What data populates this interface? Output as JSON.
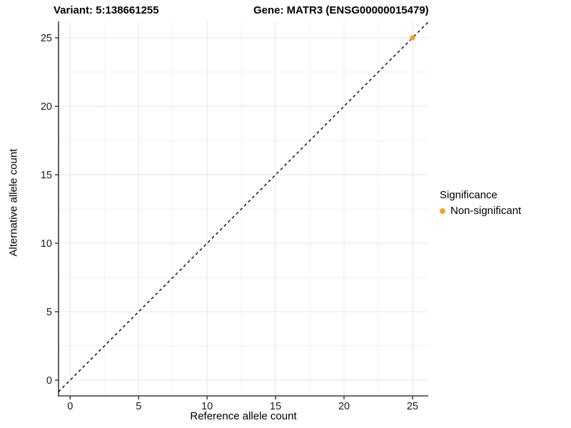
{
  "titles": {
    "variant": "Variant: 5:138661255",
    "gene": "Gene: MATR3 (ENSG00000015479)"
  },
  "chart_data": {
    "type": "scatter",
    "title_left": "Variant: 5:138661255",
    "title_right": "Gene: MATR3 (ENSG00000015479)",
    "xlabel": "Reference allele count",
    "ylabel": "Alternative allele count",
    "x_ticks": [
      0,
      5,
      10,
      15,
      20,
      25
    ],
    "y_ticks": [
      0,
      5,
      10,
      15,
      20,
      25
    ],
    "minor_tick_step": 2.5,
    "xlim": [
      -0.85,
      26.15
    ],
    "ylim": [
      -1.15,
      26.2
    ],
    "grid": true,
    "identity_line": {
      "slope": 1,
      "intercept": 0,
      "style": "dashed",
      "color": "#000000"
    },
    "series": [
      {
        "name": "Non-significant",
        "color": "#F9A11F",
        "points": [
          {
            "x": 25,
            "y": 25
          }
        ]
      }
    ],
    "legend": {
      "title": "Significance",
      "position": "right",
      "items": [
        {
          "label": "Non-significant",
          "color": "#F9A11F"
        }
      ]
    },
    "colors": {
      "grid_major": "#E4E4E4",
      "grid_minor": "#F1F1F1",
      "axis_line": "#3C3C3C",
      "tick_mark": "#333333",
      "tick_label": "#1A1A1A",
      "background": "#FFFFFF"
    }
  }
}
